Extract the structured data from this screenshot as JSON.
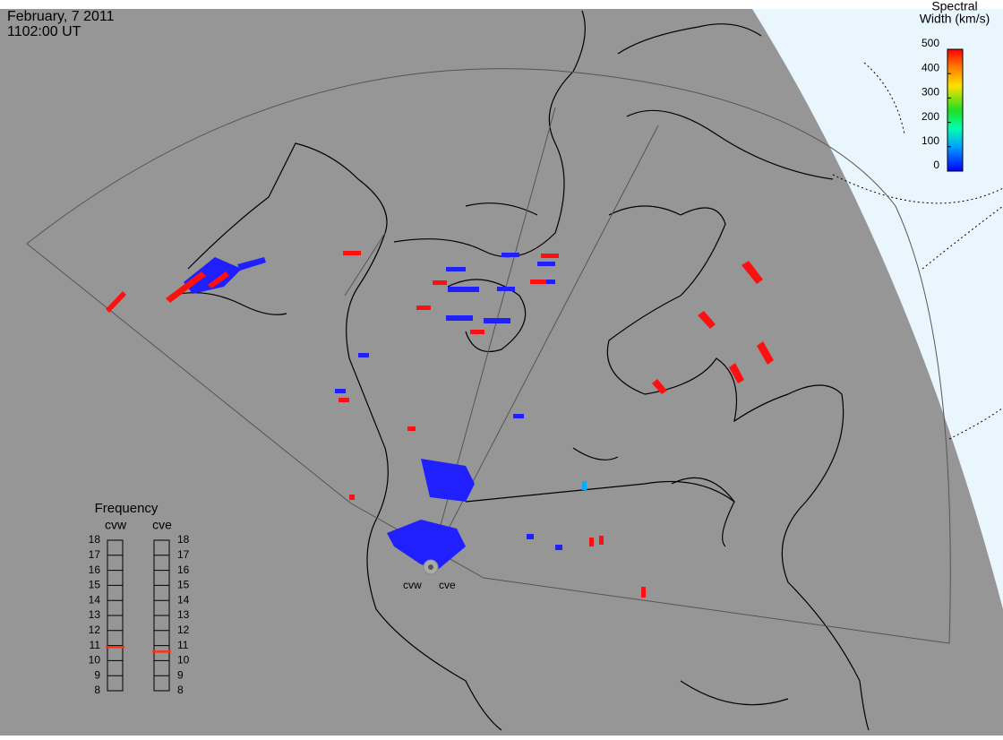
{
  "header": {
    "date": "February, 7 2011",
    "time": "1102:00 UT"
  },
  "colorbar": {
    "title": [
      "Spectral",
      "Width (km/s)"
    ],
    "range": [
      0,
      500
    ],
    "ticks": [
      0,
      100,
      200,
      300,
      400,
      500
    ]
  },
  "frequency": {
    "title": "Frequency",
    "range": [
      8,
      18
    ],
    "ticks": [
      8,
      9,
      10,
      11,
      12,
      13,
      14,
      15,
      16,
      17,
      18
    ],
    "radars": [
      {
        "name": "cvw",
        "value": 10.9
      },
      {
        "name": "cve",
        "value": 10.6
      }
    ]
  },
  "stations": [
    "cvw",
    "cve"
  ]
}
